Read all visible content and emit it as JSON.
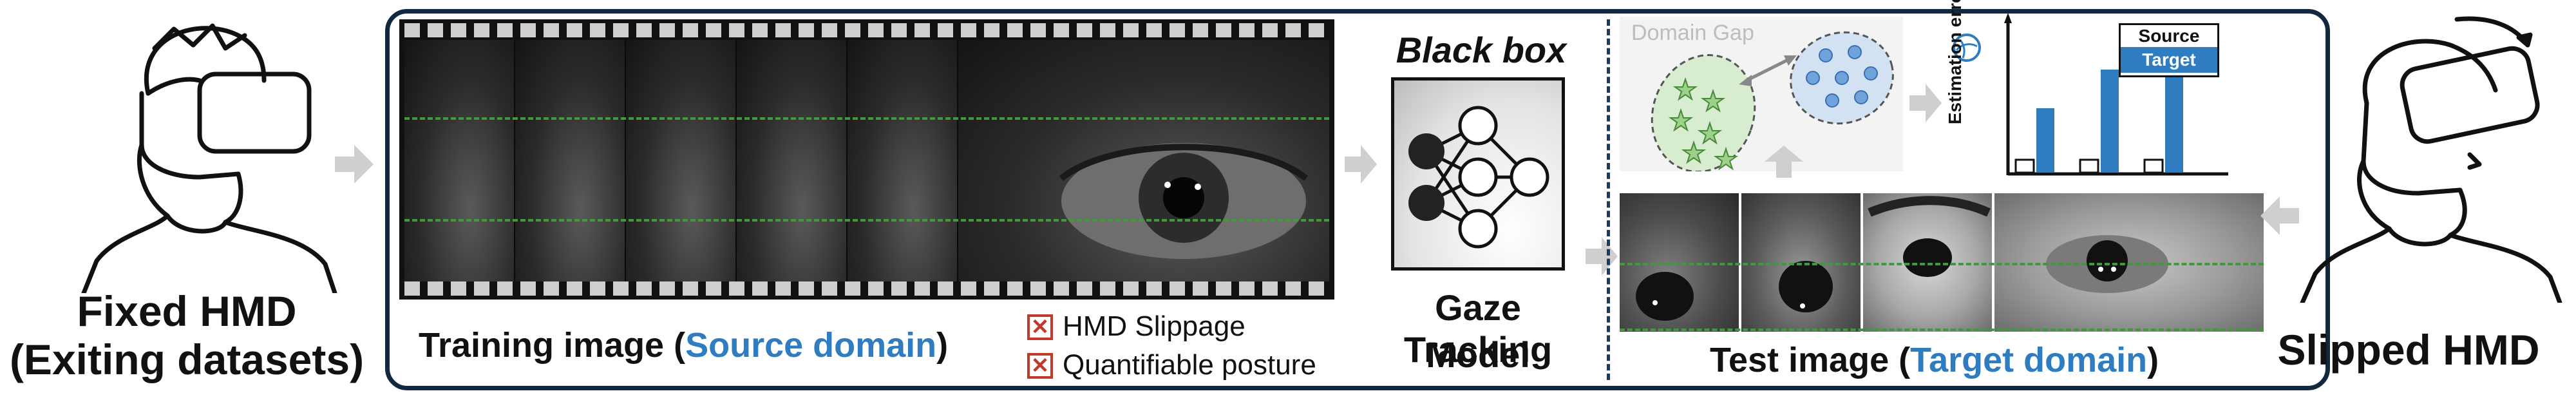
{
  "left": {
    "title_line1": "Fixed HMD",
    "title_line2": "(Exiting datasets)"
  },
  "right": {
    "title": "Slipped HMD"
  },
  "training": {
    "prefix": "Training image (",
    "domain": "Source domain",
    "suffix": ")"
  },
  "legend": {
    "items": [
      "HMD Slippage",
      "Quantifiable posture"
    ]
  },
  "model": {
    "header": "Black box",
    "title_line1": "Gaze Tracking",
    "title_line2": "Model"
  },
  "domain_gap": {
    "label": "Domain Gap"
  },
  "chart": {
    "ylabel": "Estimation error",
    "legend_source": "Source",
    "legend_target": "Target"
  },
  "chart_data": {
    "type": "bar",
    "categories": [
      "",
      "",
      ""
    ],
    "series": [
      {
        "name": "Source",
        "values": [
          1,
          1,
          1
        ]
      },
      {
        "name": "Target",
        "values": [
          5,
          8,
          8.7
        ]
      }
    ],
    "ylabel": "Estimation error",
    "ylim": [
      0,
      10
    ]
  },
  "test": {
    "prefix": "Test image  (",
    "domain": "Target domain",
    "suffix": ")"
  },
  "colors": {
    "accent": "#2f7cc1",
    "frame": "#12283e",
    "dash": "#3f9a3f",
    "cross": "#c0392b"
  }
}
